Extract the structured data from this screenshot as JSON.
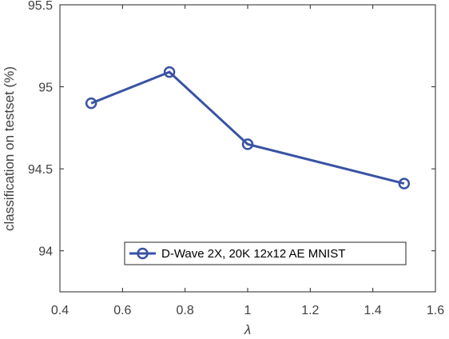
{
  "chart_data": {
    "type": "line",
    "title": "",
    "xlabel": "λ",
    "ylabel": "classification on testset (%)",
    "xlim": [
      0.4,
      1.6
    ],
    "ylim": [
      93.75,
      95.5
    ],
    "xticks": [
      "0.4",
      "0.6",
      "0.8",
      "1",
      "1.2",
      "1.4",
      "1.6"
    ],
    "yticks": [
      "94",
      "94.5",
      "95",
      "95.5"
    ],
    "grid": false,
    "legend_position": "bottom-right",
    "series": [
      {
        "name": "D-Wave 2X, 20K 12x12 AE MNIST",
        "color": "#3953a4",
        "marker": "circle",
        "x": [
          0.5,
          0.75,
          1.0,
          1.5
        ],
        "y": [
          94.9,
          95.09,
          94.65,
          94.41
        ]
      }
    ]
  }
}
